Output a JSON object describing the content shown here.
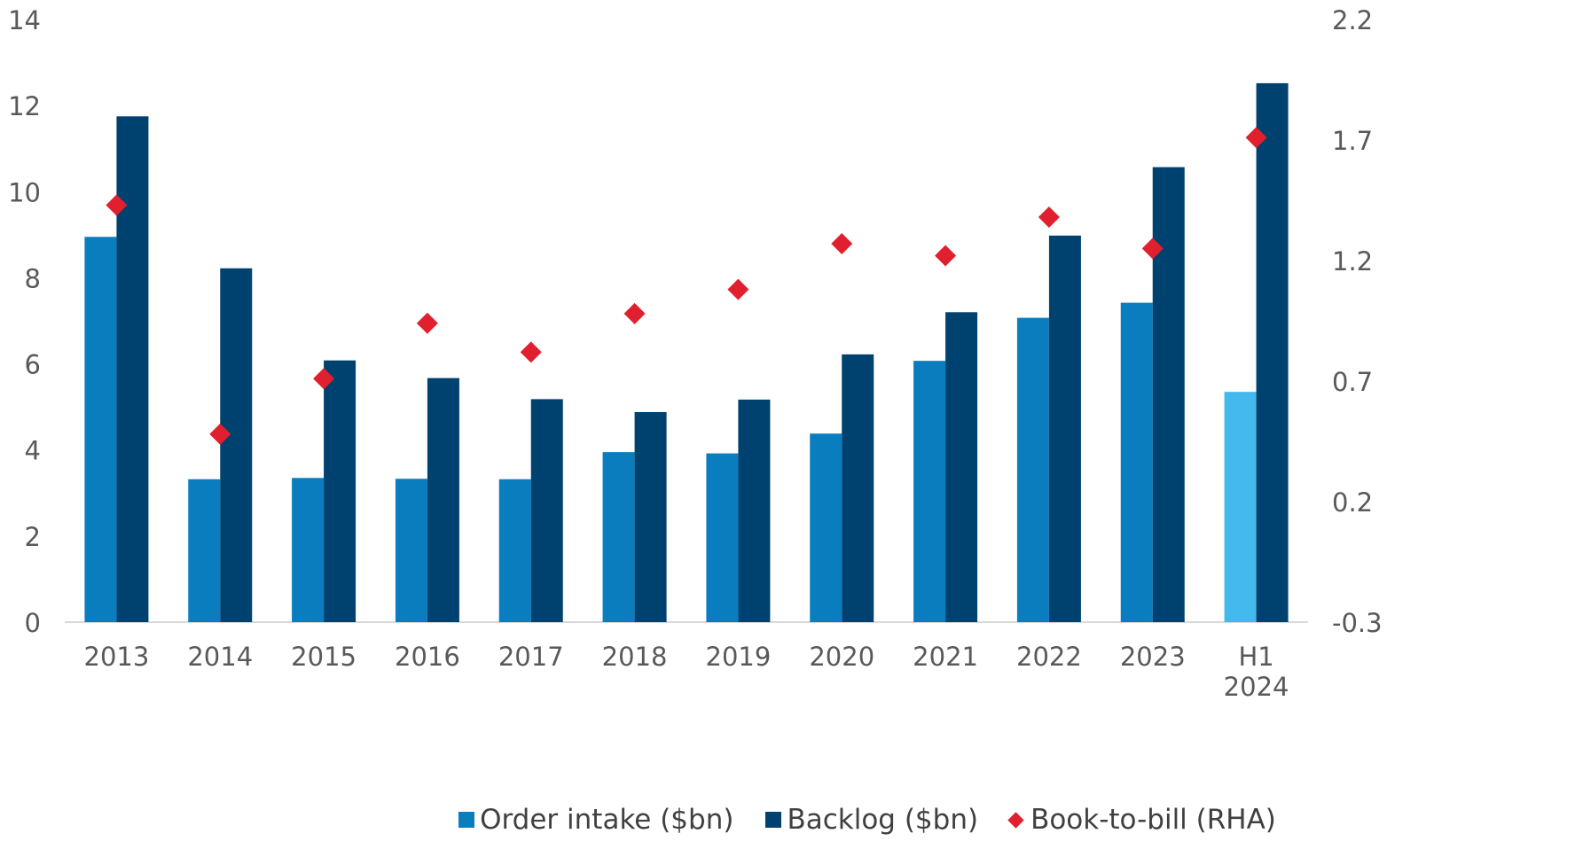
{
  "chart_data": {
    "type": "bar",
    "categories": [
      "2013",
      "2014",
      "2015",
      "2016",
      "2017",
      "2018",
      "2019",
      "2020",
      "2021",
      "2022",
      "2023",
      "H1 2024"
    ],
    "series": [
      {
        "name": "Order intake ($bn)",
        "kind": "bar",
        "axis": "left",
        "color": "#0A7DBF",
        "highlight_color": "#43B9EE",
        "highlight_index": 11,
        "values": [
          8.95,
          3.32,
          3.35,
          3.33,
          3.32,
          3.95,
          3.92,
          4.38,
          6.07,
          7.07,
          7.42,
          5.35
        ]
      },
      {
        "name": "Backlog ($bn)",
        "kind": "bar",
        "axis": "left",
        "color": "#00426F",
        "values": [
          11.75,
          8.22,
          6.08,
          5.67,
          5.18,
          4.88,
          5.17,
          6.22,
          7.2,
          8.98,
          10.57,
          12.52
        ]
      },
      {
        "name": "Book-to-bill (RHA)",
        "kind": "scatter",
        "marker": "diamond",
        "axis": "right",
        "color": "#E0202F",
        "values": [
          1.43,
          0.48,
          0.71,
          0.94,
          0.82,
          0.98,
          1.08,
          1.27,
          1.22,
          1.38,
          1.25,
          1.71
        ]
      }
    ],
    "y_left": {
      "lim": [
        0,
        14
      ],
      "ticks": [
        "0",
        "2",
        "4",
        "6",
        "8",
        "10",
        "12",
        "14"
      ]
    },
    "y_right": {
      "lim": [
        -0.3,
        2.2
      ],
      "ticks": [
        "-0.3",
        "0.2",
        "0.7",
        "1.2",
        "1.7",
        "2.2"
      ]
    },
    "grid": false,
    "legend_position": "bottom-center"
  }
}
